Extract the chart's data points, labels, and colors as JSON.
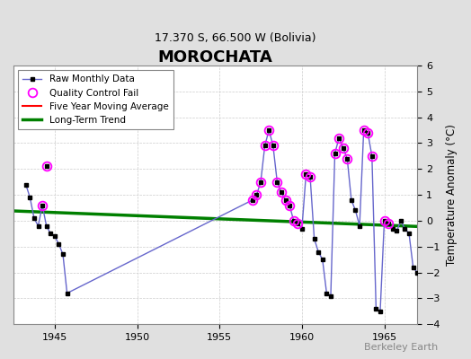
{
  "title": "MOROCHATA",
  "subtitle": "17.370 S, 66.500 W (Bolivia)",
  "ylabel": "Temperature Anomaly (°C)",
  "watermark": "Berkeley Earth",
  "xlim": [
    1942.5,
    1967.0
  ],
  "ylim": [
    -4,
    6
  ],
  "yticks": [
    -4,
    -3,
    -2,
    -1,
    0,
    1,
    2,
    3,
    4,
    5,
    6
  ],
  "xticks": [
    1945,
    1950,
    1955,
    1960,
    1965
  ],
  "background_color": "#e0e0e0",
  "plot_bg_color": "#ffffff",
  "line_color": "#6666cc",
  "raw_data": [
    [
      1943.25,
      1.4
    ],
    [
      1943.5,
      0.9
    ],
    [
      1943.75,
      0.1
    ],
    [
      1944.0,
      -0.2
    ],
    [
      1944.25,
      0.6
    ],
    [
      1944.5,
      -0.2
    ],
    [
      1944.75,
      -0.5
    ],
    [
      1945.0,
      -0.6
    ],
    [
      1945.25,
      -0.9
    ],
    [
      1945.5,
      -1.3
    ],
    [
      1945.75,
      -2.8
    ],
    [
      1957.0,
      0.8
    ],
    [
      1957.25,
      1.0
    ],
    [
      1957.5,
      1.5
    ],
    [
      1957.75,
      2.9
    ],
    [
      1958.0,
      3.5
    ],
    [
      1958.25,
      2.9
    ],
    [
      1958.5,
      1.5
    ],
    [
      1958.75,
      1.1
    ],
    [
      1959.0,
      0.8
    ],
    [
      1959.25,
      0.6
    ],
    [
      1959.5,
      0.0
    ],
    [
      1959.75,
      -0.1
    ],
    [
      1960.0,
      -0.3
    ],
    [
      1960.25,
      1.8
    ],
    [
      1960.5,
      1.7
    ],
    [
      1960.75,
      -0.7
    ],
    [
      1961.0,
      -1.2
    ],
    [
      1961.25,
      -1.5
    ],
    [
      1961.5,
      -2.8
    ],
    [
      1961.75,
      -2.9
    ],
    [
      1962.0,
      2.6
    ],
    [
      1962.25,
      3.2
    ],
    [
      1962.5,
      2.8
    ],
    [
      1962.75,
      2.4
    ],
    [
      1963.0,
      0.8
    ],
    [
      1963.25,
      0.4
    ],
    [
      1963.5,
      -0.2
    ],
    [
      1963.75,
      3.5
    ],
    [
      1964.0,
      3.4
    ],
    [
      1964.25,
      2.5
    ],
    [
      1964.5,
      -3.4
    ],
    [
      1964.75,
      -3.5
    ],
    [
      1965.0,
      0.0
    ],
    [
      1965.25,
      -0.1
    ],
    [
      1965.5,
      -0.3
    ],
    [
      1965.75,
      -0.4
    ],
    [
      1966.0,
      0.0
    ],
    [
      1966.25,
      -0.3
    ],
    [
      1966.5,
      -0.5
    ],
    [
      1966.75,
      -1.8
    ],
    [
      1967.0,
      -2.0
    ]
  ],
  "qc_fail_on_line": [
    [
      1944.25,
      0.6
    ],
    [
      1957.0,
      0.8
    ],
    [
      1957.25,
      1.0
    ],
    [
      1957.5,
      1.5
    ],
    [
      1957.75,
      2.9
    ],
    [
      1958.0,
      3.5
    ],
    [
      1958.25,
      2.9
    ],
    [
      1958.5,
      1.5
    ],
    [
      1958.75,
      1.1
    ],
    [
      1959.0,
      0.8
    ],
    [
      1959.25,
      0.6
    ],
    [
      1959.5,
      0.0
    ],
    [
      1959.75,
      -0.1
    ],
    [
      1960.25,
      1.8
    ],
    [
      1960.5,
      1.7
    ],
    [
      1962.0,
      2.6
    ],
    [
      1962.25,
      3.2
    ],
    [
      1962.5,
      2.8
    ],
    [
      1962.75,
      2.4
    ],
    [
      1963.75,
      3.5
    ],
    [
      1964.0,
      3.4
    ],
    [
      1964.25,
      2.5
    ],
    [
      1965.0,
      0.0
    ],
    [
      1965.25,
      -0.1
    ]
  ],
  "qc_fail_isolated": [
    [
      1944.5,
      2.1
    ]
  ],
  "trend_x": [
    1942.5,
    1967.0
  ],
  "trend_y": [
    0.38,
    -0.22
  ]
}
